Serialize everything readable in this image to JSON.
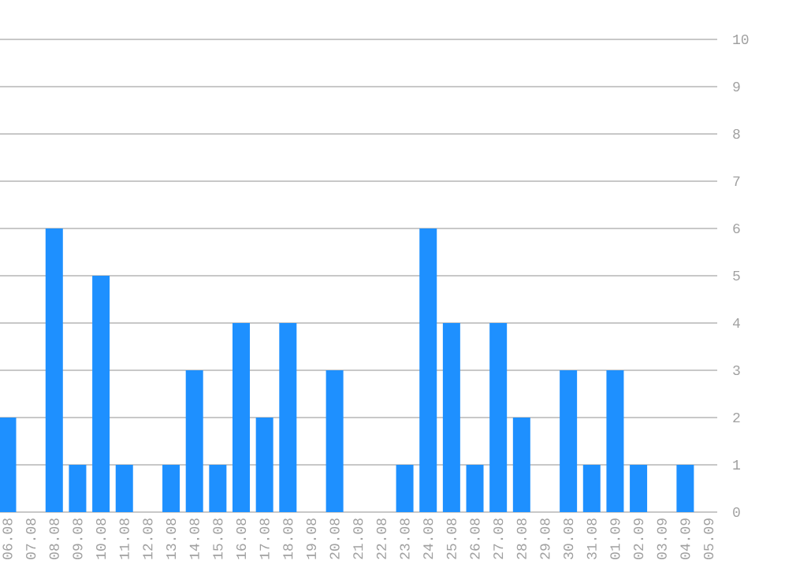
{
  "chart_data": {
    "type": "bar",
    "categories": [
      "06.08",
      "07.08",
      "08.08",
      "09.08",
      "10.08",
      "11.08",
      "12.08",
      "13.08",
      "14.08",
      "15.08",
      "16.08",
      "17.08",
      "18.08",
      "19.08",
      "20.08",
      "21.08",
      "22.08",
      "23.08",
      "24.08",
      "25.08",
      "26.08",
      "27.08",
      "28.08",
      "29.08",
      "30.08",
      "31.08",
      "01.09",
      "02.09",
      "03.09",
      "04.09",
      "05.09"
    ],
    "values": [
      2,
      0,
      6,
      1,
      5,
      1,
      0,
      1,
      3,
      1,
      4,
      2,
      4,
      0,
      3,
      0,
      0,
      1,
      6,
      4,
      1,
      4,
      2,
      0,
      3,
      1,
      3,
      1,
      0,
      1,
      0
    ],
    "color": "#1e90ff",
    "ylim": [
      0,
      10
    ],
    "yticks": [
      0,
      1,
      2,
      3,
      4,
      5,
      6,
      7,
      8,
      9,
      10
    ],
    "grid": "y"
  }
}
